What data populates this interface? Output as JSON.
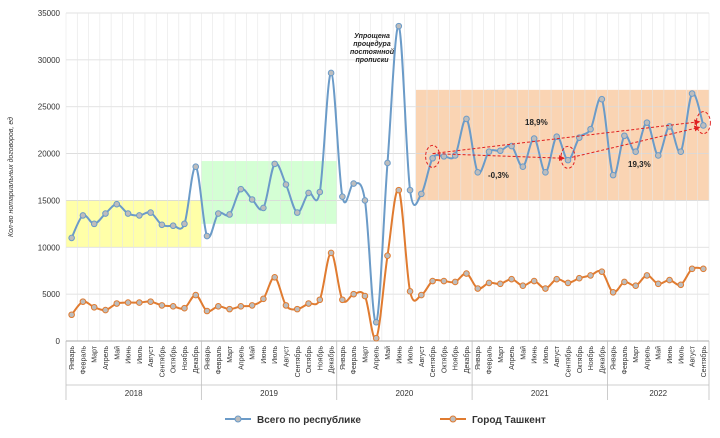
{
  "chart_data": {
    "type": "line",
    "ylabel": "Кол-во нотариальных договоров, ед",
    "ylim": [
      0,
      35000
    ],
    "yticks": [
      0,
      5000,
      10000,
      15000,
      20000,
      25000,
      30000,
      35000
    ],
    "grid": true,
    "legend_position": "bottom",
    "months": [
      "Январь",
      "Февраль",
      "Март",
      "Апрель",
      "Май",
      "Июнь",
      "Июль",
      "Август",
      "Сентябрь",
      "Октябрь",
      "Ноябрь",
      "Декабрь"
    ],
    "x": [
      "Январь",
      "Февраль",
      "Март",
      "Апрель",
      "Май",
      "Июнь",
      "Июль",
      "Август",
      "Сентябрь",
      "Октябрь",
      "Ноябрь",
      "Декабрь",
      "Январь",
      "Февраль",
      "Март",
      "Апрель",
      "Май",
      "Июнь",
      "Июль",
      "Август",
      "Сентябрь",
      "Октябрь",
      "Ноябрь",
      "Декабрь",
      "Январь",
      "Февраль",
      "Март",
      "Апрель",
      "Май",
      "Июнь",
      "Июль",
      "Август",
      "Сентябрь",
      "Октябрь",
      "Ноябрь",
      "Декабрь",
      "Январь",
      "Февраль",
      "Март",
      "Апрель",
      "Май",
      "Июнь",
      "Июль",
      "Август",
      "Сентябрь",
      "Октябрь",
      "Ноябрь",
      "Декабрь",
      "Январь",
      "Февраль",
      "Март",
      "Апрель",
      "Май",
      "Июнь",
      "Июль",
      "Август",
      "Сентябрь"
    ],
    "years": [
      {
        "label": "2018",
        "start": 0,
        "count": 12
      },
      {
        "label": "2019",
        "start": 12,
        "count": 12
      },
      {
        "label": "2020",
        "start": 24,
        "count": 12
      },
      {
        "label": "2021",
        "start": 36,
        "count": 12
      },
      {
        "label": "2022",
        "start": 48,
        "count": 9
      }
    ],
    "series": [
      {
        "name": "Всего по республике",
        "color": "#6b9bc8",
        "values": [
          11000,
          13400,
          12500,
          13600,
          14600,
          13600,
          13400,
          13700,
          12400,
          12300,
          12500,
          18600,
          11200,
          13600,
          13500,
          16200,
          15100,
          14200,
          18900,
          16700,
          13700,
          15800,
          15900,
          28600,
          15400,
          16800,
          15000,
          2000,
          19000,
          33600,
          16100,
          15700,
          19500,
          19700,
          19800,
          23700,
          18000,
          20200,
          20300,
          20800,
          18600,
          21600,
          18000,
          21800,
          19300,
          21700,
          22600,
          25800,
          17700,
          21900,
          20200,
          23300,
          19800,
          22900,
          20200,
          26400,
          23000
        ]
      },
      {
        "name": "Город Ташкент",
        "color": "#e07b30",
        "values": [
          2800,
          4200,
          3600,
          3300,
          4000,
          4100,
          4100,
          4200,
          3800,
          3700,
          3500,
          4900,
          3200,
          3700,
          3400,
          3700,
          3800,
          4500,
          6800,
          3800,
          3400,
          4000,
          4400,
          9400,
          4400,
          5000,
          4800,
          300,
          9100,
          16100,
          5300,
          4900,
          6400,
          6400,
          6300,
          7200,
          5600,
          6200,
          6100,
          6600,
          5900,
          6400,
          5600,
          6600,
          6200,
          6700,
          7000,
          7400,
          5200,
          6300,
          5900,
          7000,
          6100,
          6500,
          6000,
          7700,
          7700
        ]
      }
    ],
    "bands": [
      {
        "color": "#ffff99",
        "from_index": 0,
        "to_index": 12,
        "y_from": 10000,
        "y_to": 15000
      },
      {
        "color": "#ccffcc",
        "from_index": 12,
        "to_index": 24,
        "y_from": 12500,
        "y_to": 19200
      },
      {
        "color": "#f9cda6",
        "from_index": 31,
        "to_index": 57,
        "y_from": 15000,
        "y_to": 26800
      }
    ],
    "annotations": {
      "note": [
        "Упрощена",
        "процедура",
        "постоянной",
        "прописки"
      ],
      "growth_upper": "18,9%",
      "growth_lower": "19,3%",
      "growth_mid": "-0,3%"
    }
  }
}
